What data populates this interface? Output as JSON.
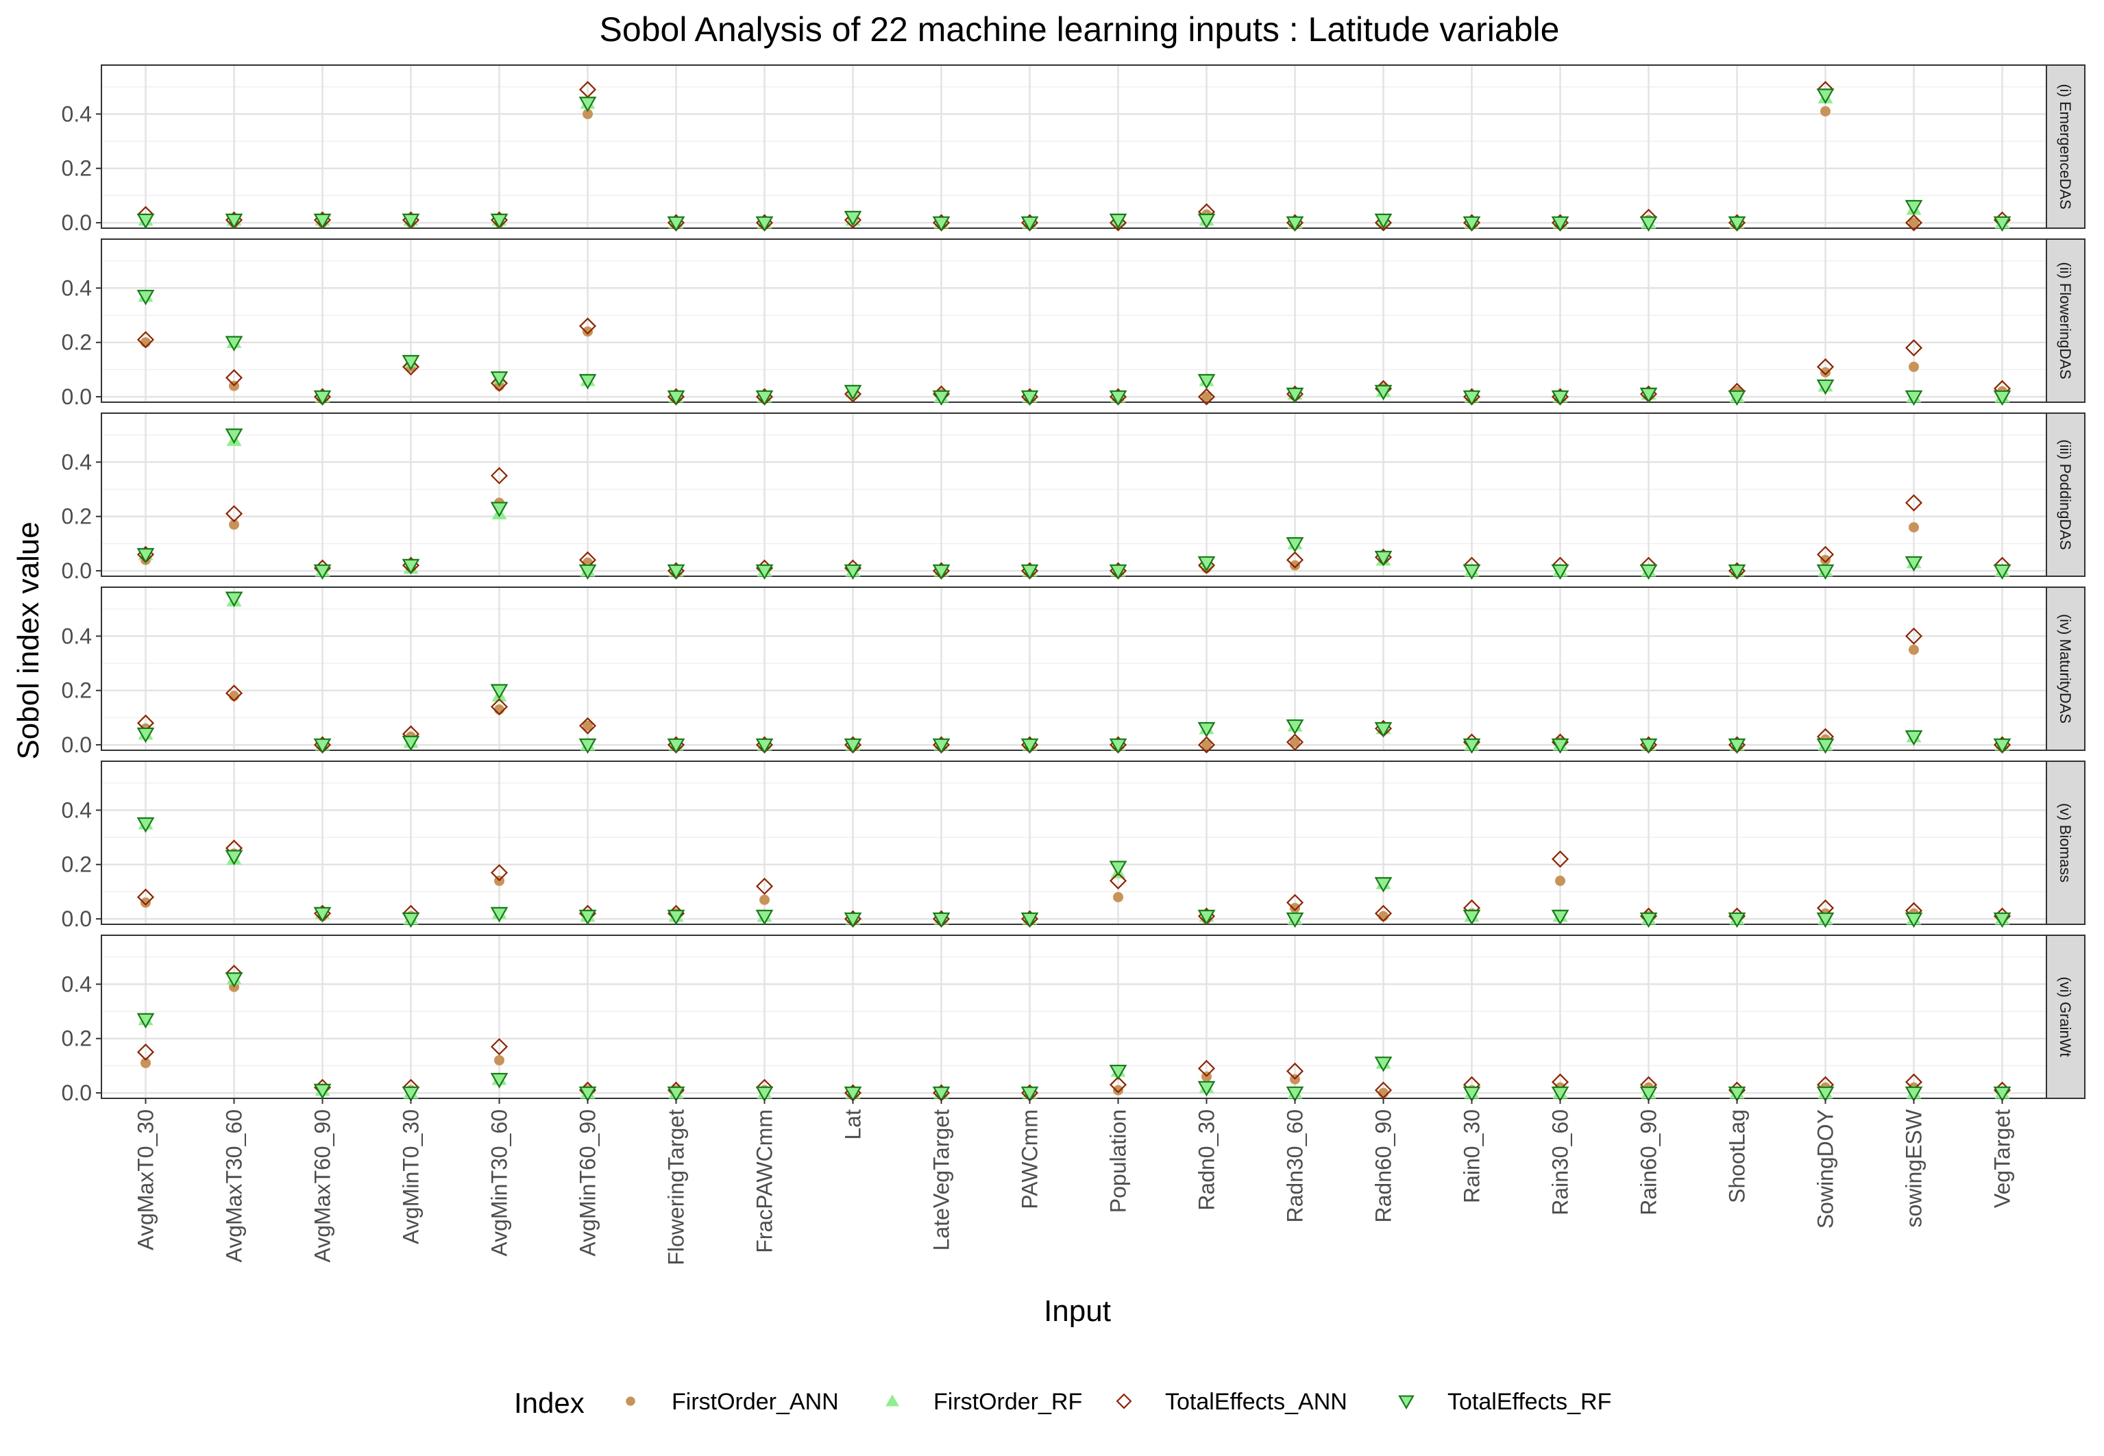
{
  "chart_data": {
    "type": "scatter",
    "title": "Sobol Analysis of 22 machine learning inputs : Latitude variable",
    "xlabel": "Input",
    "ylabel": "Sobol index value",
    "y_ticks": [
      "0.0",
      "0.2",
      "0.4"
    ],
    "ylim": [
      -0.02,
      0.58
    ],
    "grid": true,
    "legend_position": "bottom",
    "legend_title": "Index",
    "categories": [
      "AvgMaxT0_30",
      "AvgMaxT30_60",
      "AvgMaxT60_90",
      "AvgMinT0_30",
      "AvgMinT30_60",
      "AvgMinT60_90",
      "FloweringTarget",
      "FracPAWCmm",
      "Lat",
      "LateVegTarget",
      "PAWCmm",
      "Population",
      "Radn0_30",
      "Radn30_60",
      "Radn60_90",
      "Rain0_30",
      "Rain30_60",
      "Rain60_90",
      "ShootLag",
      "SowingDOY",
      "sowingESW",
      "VegTarget"
    ],
    "series_styles": [
      {
        "name": "FirstOrder_ANN",
        "shape": "circle",
        "color": "#c8935a"
      },
      {
        "name": "FirstOrder_RF",
        "shape": "triangle-up",
        "color": "#90ee90"
      },
      {
        "name": "TotalEffects_ANN",
        "shape": "diamond-open",
        "color": "#8b2500"
      },
      {
        "name": "TotalEffects_RF",
        "shape": "triangle-down-open",
        "fill": "#90ee90",
        "color": "#1a7a1a"
      }
    ],
    "panels": [
      {
        "label": "(i) EmergenceDAS",
        "series": [
          {
            "name": "FirstOrder_ANN",
            "values": [
              0.01,
              0.0,
              0.0,
              0.0,
              0.0,
              0.4,
              0.0,
              0.0,
              0.01,
              0.0,
              0.0,
              0.0,
              0.03,
              0.0,
              0.0,
              0.0,
              0.0,
              0.01,
              0.0,
              0.41,
              0.0,
              0.0
            ]
          },
          {
            "name": "FirstOrder_RF",
            "values": [
              0.01,
              0.01,
              0.01,
              0.01,
              0.01,
              0.44,
              0.0,
              0.0,
              0.01,
              0.0,
              0.0,
              0.01,
              0.01,
              0.0,
              0.01,
              0.0,
              0.0,
              0.0,
              0.0,
              0.46,
              0.05,
              0.0
            ]
          },
          {
            "name": "TotalEffects_ANN",
            "values": [
              0.03,
              0.01,
              0.01,
              0.01,
              0.01,
              0.49,
              0.0,
              0.0,
              0.01,
              0.0,
              0.0,
              0.0,
              0.04,
              0.0,
              0.0,
              0.0,
              0.0,
              0.02,
              0.0,
              0.49,
              0.0,
              0.01
            ]
          },
          {
            "name": "TotalEffects_RF",
            "values": [
              0.01,
              0.01,
              0.01,
              0.01,
              0.01,
              0.44,
              0.0,
              0.0,
              0.02,
              0.0,
              0.0,
              0.01,
              0.01,
              0.0,
              0.01,
              0.0,
              0.0,
              0.0,
              0.0,
              0.47,
              0.06,
              0.0
            ]
          }
        ]
      },
      {
        "label": "(ii) FloweringDAS",
        "series": [
          {
            "name": "FirstOrder_ANN",
            "values": [
              0.2,
              0.04,
              0.0,
              0.11,
              0.04,
              0.24,
              0.0,
              0.0,
              0.01,
              0.01,
              0.0,
              0.0,
              0.0,
              0.01,
              0.03,
              0.0,
              0.0,
              0.01,
              0.02,
              0.09,
              0.11,
              0.02
            ]
          },
          {
            "name": "FirstOrder_RF",
            "values": [
              0.37,
              0.2,
              0.0,
              0.13,
              0.07,
              0.06,
              0.0,
              0.0,
              0.02,
              0.0,
              0.0,
              0.0,
              0.06,
              0.01,
              0.02,
              0.0,
              0.0,
              0.01,
              0.0,
              0.04,
              0.0,
              0.0
            ]
          },
          {
            "name": "TotalEffects_ANN",
            "values": [
              0.21,
              0.07,
              0.0,
              0.11,
              0.05,
              0.26,
              0.0,
              0.0,
              0.01,
              0.01,
              0.0,
              0.0,
              0.0,
              0.01,
              0.03,
              0.0,
              0.0,
              0.01,
              0.02,
              0.11,
              0.18,
              0.03
            ]
          },
          {
            "name": "TotalEffects_RF",
            "values": [
              0.37,
              0.2,
              0.0,
              0.13,
              0.07,
              0.06,
              0.0,
              0.0,
              0.02,
              0.0,
              0.0,
              0.0,
              0.06,
              0.01,
              0.02,
              0.0,
              0.0,
              0.01,
              0.0,
              0.04,
              0.0,
              0.0
            ]
          }
        ]
      },
      {
        "label": "(iii) PoddingDAS",
        "series": [
          {
            "name": "FirstOrder_ANN",
            "values": [
              0.04,
              0.17,
              0.0,
              0.02,
              0.25,
              0.03,
              0.0,
              0.0,
              0.0,
              0.0,
              0.0,
              0.0,
              0.01,
              0.02,
              0.05,
              0.0,
              0.0,
              0.0,
              0.0,
              0.04,
              0.16,
              0.0
            ]
          },
          {
            "name": "FirstOrder_RF",
            "values": [
              0.06,
              0.48,
              0.0,
              0.01,
              0.21,
              0.0,
              0.0,
              0.0,
              0.0,
              0.0,
              0.0,
              0.0,
              0.03,
              0.1,
              0.04,
              0.0,
              0.0,
              0.0,
              0.0,
              0.0,
              0.03,
              0.0
            ]
          },
          {
            "name": "TotalEffects_ANN",
            "values": [
              0.06,
              0.21,
              0.01,
              0.02,
              0.35,
              0.04,
              0.0,
              0.01,
              0.01,
              0.0,
              0.0,
              0.0,
              0.02,
              0.04,
              0.05,
              0.02,
              0.02,
              0.02,
              0.0,
              0.06,
              0.25,
              0.02
            ]
          },
          {
            "name": "TotalEffects_RF",
            "values": [
              0.06,
              0.5,
              0.0,
              0.02,
              0.23,
              0.0,
              0.0,
              0.0,
              0.0,
              0.0,
              0.0,
              0.0,
              0.03,
              0.1,
              0.05,
              0.0,
              0.0,
              0.0,
              0.0,
              0.0,
              0.03,
              0.0
            ]
          }
        ]
      },
      {
        "label": "(iv) MaturityDAS",
        "series": [
          {
            "name": "FirstOrder_ANN",
            "values": [
              0.06,
              0.18,
              0.0,
              0.03,
              0.13,
              0.07,
              0.0,
              0.0,
              0.0,
              0.0,
              0.0,
              0.0,
              0.0,
              0.01,
              0.06,
              0.0,
              0.01,
              0.0,
              0.0,
              0.02,
              0.35,
              0.0
            ]
          },
          {
            "name": "FirstOrder_RF",
            "values": [
              0.04,
              0.53,
              0.0,
              0.01,
              0.18,
              0.0,
              0.0,
              0.0,
              0.0,
              0.0,
              0.0,
              0.0,
              0.06,
              0.07,
              0.06,
              0.0,
              0.0,
              0.0,
              0.0,
              0.0,
              0.03,
              0.0
            ]
          },
          {
            "name": "TotalEffects_ANN",
            "values": [
              0.08,
              0.19,
              0.0,
              0.04,
              0.14,
              0.07,
              0.0,
              0.0,
              0.0,
              0.0,
              0.0,
              0.0,
              0.0,
              0.01,
              0.06,
              0.01,
              0.01,
              0.0,
              0.0,
              0.03,
              0.4,
              0.0
            ]
          },
          {
            "name": "TotalEffects_RF",
            "values": [
              0.04,
              0.54,
              0.0,
              0.01,
              0.2,
              0.0,
              0.0,
              0.0,
              0.0,
              0.0,
              0.0,
              0.0,
              0.06,
              0.07,
              0.06,
              0.0,
              0.0,
              0.0,
              0.0,
              0.0,
              0.03,
              0.0
            ]
          }
        ]
      },
      {
        "label": "(v) Biomass",
        "series": [
          {
            "name": "FirstOrder_ANN",
            "values": [
              0.06,
              0.24,
              0.01,
              0.01,
              0.14,
              0.01,
              0.02,
              0.07,
              0.0,
              0.0,
              0.0,
              0.08,
              0.0,
              0.04,
              0.01,
              0.02,
              0.14,
              0.01,
              0.0,
              0.02,
              0.02,
              0.0
            ]
          },
          {
            "name": "FirstOrder_RF",
            "values": [
              0.35,
              0.22,
              0.02,
              0.0,
              0.02,
              0.01,
              0.01,
              0.01,
              0.0,
              0.0,
              0.0,
              0.17,
              0.01,
              0.0,
              0.13,
              0.01,
              0.01,
              0.0,
              0.0,
              0.0,
              0.0,
              0.0
            ]
          },
          {
            "name": "TotalEffects_ANN",
            "values": [
              0.08,
              0.26,
              0.02,
              0.02,
              0.17,
              0.02,
              0.02,
              0.12,
              0.0,
              0.0,
              0.0,
              0.14,
              0.01,
              0.06,
              0.02,
              0.04,
              0.22,
              0.01,
              0.01,
              0.04,
              0.03,
              0.01
            ]
          },
          {
            "name": "TotalEffects_RF",
            "values": [
              0.35,
              0.23,
              0.02,
              0.0,
              0.02,
              0.01,
              0.01,
              0.01,
              0.0,
              0.0,
              0.0,
              0.19,
              0.01,
              0.0,
              0.13,
              0.01,
              0.01,
              0.0,
              0.0,
              0.0,
              0.0,
              0.0
            ]
          }
        ]
      },
      {
        "label": "(vi) GrainWt",
        "series": [
          {
            "name": "FirstOrder_ANN",
            "values": [
              0.11,
              0.39,
              0.01,
              0.01,
              0.12,
              0.01,
              0.01,
              0.01,
              0.0,
              0.0,
              0.0,
              0.01,
              0.06,
              0.05,
              0.0,
              0.01,
              0.02,
              0.02,
              0.0,
              0.02,
              0.02,
              0.0
            ]
          },
          {
            "name": "FirstOrder_RF",
            "values": [
              0.27,
              0.42,
              0.01,
              0.0,
              0.05,
              0.0,
              0.0,
              0.0,
              0.0,
              0.0,
              0.0,
              0.08,
              0.02,
              0.0,
              0.11,
              0.0,
              0.0,
              0.0,
              0.0,
              0.0,
              0.0,
              0.0
            ]
          },
          {
            "name": "TotalEffects_ANN",
            "values": [
              0.15,
              0.44,
              0.02,
              0.02,
              0.17,
              0.01,
              0.01,
              0.02,
              0.0,
              0.0,
              0.0,
              0.03,
              0.09,
              0.08,
              0.01,
              0.03,
              0.04,
              0.03,
              0.01,
              0.03,
              0.04,
              0.01
            ]
          },
          {
            "name": "TotalEffects_RF",
            "values": [
              0.27,
              0.42,
              0.01,
              0.0,
              0.05,
              0.0,
              0.0,
              0.0,
              0.0,
              0.0,
              0.0,
              0.08,
              0.02,
              0.0,
              0.11,
              0.0,
              0.0,
              0.0,
              0.0,
              0.0,
              0.0,
              0.0
            ]
          }
        ]
      }
    ]
  }
}
